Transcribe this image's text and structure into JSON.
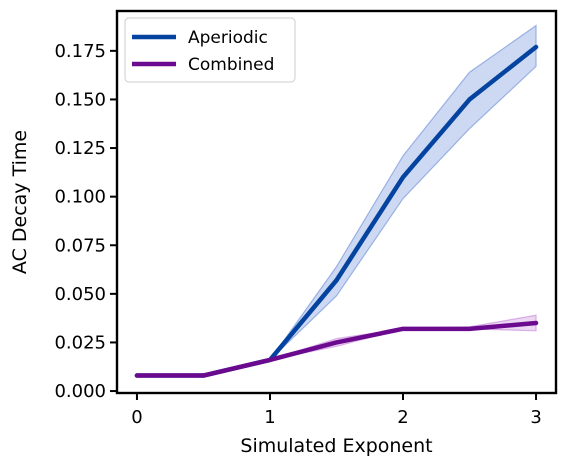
{
  "chart_data": {
    "type": "line",
    "title": "",
    "xlabel": "Simulated Exponent",
    "ylabel": "AC Decay Time",
    "xlim": [
      -0.15,
      3.15
    ],
    "ylim": [
      -0.001,
      0.1955
    ],
    "xticks": [
      0,
      1,
      2,
      3
    ],
    "xtick_labels": [
      "0",
      "1",
      "2",
      "3"
    ],
    "yticks": [
      0.0,
      0.025,
      0.05,
      0.075,
      0.1,
      0.125,
      0.15,
      0.175
    ],
    "ytick_labels": [
      "0.000",
      "0.025",
      "0.050",
      "0.075",
      "0.100",
      "0.125",
      "0.150",
      "0.175"
    ],
    "grid": false,
    "legend_position": "top-left",
    "x": [
      0,
      0.5,
      1.0,
      1.5,
      2.0,
      2.5,
      3.0
    ],
    "series": [
      {
        "name": "Aperiodic",
        "color": "#0443a0",
        "band_color": "#5b82d4",
        "values": [
          0.008,
          0.008,
          0.016,
          0.057,
          0.11,
          0.15,
          0.177
        ],
        "lower": [
          0.008,
          0.008,
          0.016,
          0.049,
          0.099,
          0.135,
          0.167
        ],
        "upper": [
          0.008,
          0.008,
          0.016,
          0.064,
          0.121,
          0.164,
          0.188
        ]
      },
      {
        "name": "Combined",
        "color": "#6b0a8f",
        "band_color": "#c07ad6",
        "values": [
          0.008,
          0.008,
          0.016,
          0.025,
          0.032,
          0.032,
          0.035
        ],
        "lower": [
          0.008,
          0.008,
          0.016,
          0.023,
          0.032,
          0.032,
          0.031
        ],
        "upper": [
          0.008,
          0.008,
          0.016,
          0.027,
          0.032,
          0.033,
          0.039
        ]
      }
    ]
  }
}
